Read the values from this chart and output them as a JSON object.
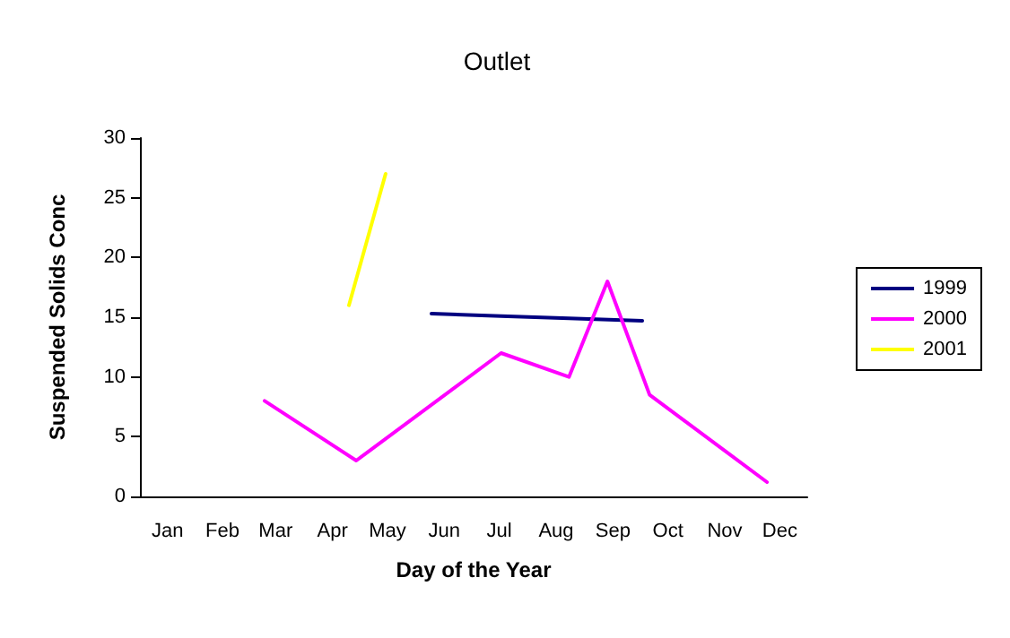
{
  "chart_data": {
    "type": "line",
    "title": "Outlet",
    "xlabel": "Day of the Year",
    "ylabel": "Suspended Solids Conc",
    "xlim": [
      "--01-01",
      "--12-31"
    ],
    "xticks": [
      {
        "value": "--01-16",
        "label": "Jan"
      },
      {
        "value": "--02-15",
        "label": "Feb"
      },
      {
        "value": "--03-16",
        "label": "Mar"
      },
      {
        "value": "--04-16",
        "label": "Apr"
      },
      {
        "value": "--05-16",
        "label": "May"
      },
      {
        "value": "--06-16",
        "label": "Jun"
      },
      {
        "value": "--07-16",
        "label": "Jul"
      },
      {
        "value": "--08-16",
        "label": "Aug"
      },
      {
        "value": "--09-16",
        "label": "Sep"
      },
      {
        "value": "--10-16",
        "label": "Oct"
      },
      {
        "value": "--11-16",
        "label": "Nov"
      },
      {
        "value": "--12-16",
        "label": "Dec"
      }
    ],
    "ylim": [
      0,
      30
    ],
    "yticks": [
      0,
      5,
      10,
      15,
      20,
      25,
      30
    ],
    "grid": false,
    "legend": "right",
    "marker": "none",
    "line_style": "solid",
    "series": [
      {
        "name": "1999",
        "color": "#000080",
        "x": [
          "--06-09",
          "--07-17",
          "--08-23",
          "--10-02"
        ],
        "values": [
          15.3,
          15.1,
          14.9,
          14.7
        ]
      },
      {
        "name": "2000",
        "color": "#ff00ff",
        "x": [
          "--03-10",
          "--04-29",
          "--07-17",
          "--08-23",
          "--09-13",
          "--10-06",
          "--12-09"
        ],
        "values": [
          8,
          3,
          12,
          10,
          18,
          8.5,
          1.2
        ]
      },
      {
        "name": "2001",
        "color": "#ffff00",
        "x": [
          "--04-25",
          "--05-15"
        ],
        "values": [
          16,
          27
        ]
      }
    ]
  }
}
